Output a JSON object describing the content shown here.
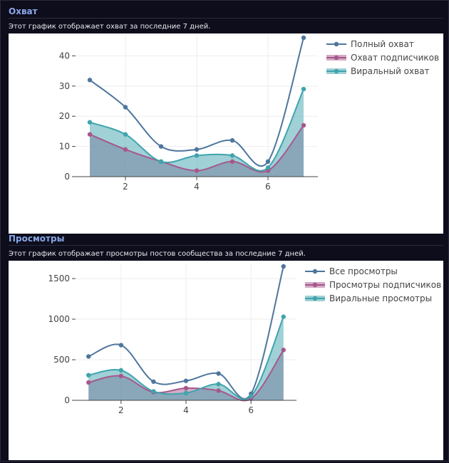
{
  "sections": [
    {
      "title": "Охват",
      "description": "Этот график отображает охват за последние 7 дней."
    },
    {
      "title": "Просмотры",
      "description": "Этот график отображает просмотры постов сообщества за последние 7 дней."
    }
  ],
  "colors": {
    "total": "#4e769d",
    "subscribers": "#a7578c",
    "viral": "#3fa4ad"
  },
  "chart_data": [
    {
      "type": "area",
      "title": "Охват",
      "x": [
        1,
        2,
        3,
        4,
        5,
        6,
        7
      ],
      "xticks": [
        2,
        4,
        6
      ],
      "yticks": [
        0,
        10,
        20,
        30,
        40
      ],
      "xlim": [
        0.6,
        7.4
      ],
      "ylim": [
        0,
        46
      ],
      "xlabel": "",
      "ylabel": "",
      "legend_position": "top-right",
      "series": [
        {
          "name": "Полный охват",
          "key": "total",
          "values": [
            32,
            23,
            10,
            9,
            12,
            5,
            46
          ],
          "fill": false
        },
        {
          "name": "Охват подписчиков",
          "key": "subscribers",
          "values": [
            14,
            9,
            5,
            2,
            5,
            2,
            17
          ],
          "fill": true
        },
        {
          "name": "Виральный охват",
          "key": "viral",
          "values": [
            18,
            14,
            5,
            7,
            7,
            3,
            29
          ],
          "fill": true
        }
      ]
    },
    {
      "type": "area",
      "title": "Просмотры",
      "x": [
        1,
        2,
        3,
        4,
        5,
        6,
        7
      ],
      "xticks": [
        2,
        4,
        6
      ],
      "yticks": [
        0,
        500,
        1000,
        1500
      ],
      "xlim": [
        0.6,
        7.4
      ],
      "ylim": [
        0,
        1650
      ],
      "xlabel": "",
      "ylabel": "",
      "legend_position": "top-right",
      "series": [
        {
          "name": "Все просмотры",
          "key": "total",
          "values": [
            540,
            680,
            230,
            240,
            330,
            80,
            1650
          ],
          "fill": false
        },
        {
          "name": "Просмотры подписчиков",
          "key": "subscribers",
          "values": [
            220,
            300,
            100,
            150,
            120,
            20,
            620
          ],
          "fill": true
        },
        {
          "name": "Виральные просмотры",
          "key": "viral",
          "values": [
            310,
            370,
            110,
            90,
            200,
            50,
            1030
          ],
          "fill": true
        }
      ]
    }
  ]
}
